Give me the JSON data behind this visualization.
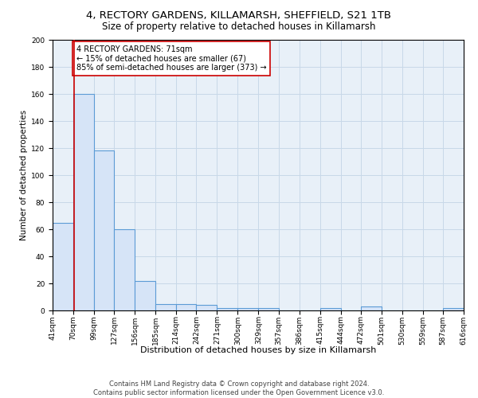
{
  "title1": "4, RECTORY GARDENS, KILLAMARSH, SHEFFIELD, S21 1TB",
  "title2": "Size of property relative to detached houses in Killamarsh",
  "xlabel": "Distribution of detached houses by size in Killamarsh",
  "ylabel": "Number of detached properties",
  "bin_edges": [
    41,
    70,
    99,
    127,
    156,
    185,
    214,
    242,
    271,
    300,
    329,
    357,
    386,
    415,
    444,
    472,
    501,
    530,
    559,
    587,
    616
  ],
  "bar_heights": [
    65,
    160,
    118,
    60,
    22,
    5,
    5,
    4,
    2,
    2,
    2,
    0,
    0,
    2,
    0,
    3,
    0,
    0,
    0,
    2
  ],
  "bar_facecolor": "#d6e4f7",
  "bar_edgecolor": "#5b9bd5",
  "property_size": 71,
  "property_line_color": "#cc0000",
  "annotation_line1": "4 RECTORY GARDENS: 71sqm",
  "annotation_line2": "← 15% of detached houses are smaller (67)",
  "annotation_line3": "85% of semi-detached houses are larger (373) →",
  "annotation_box_color": "white",
  "annotation_box_edgecolor": "#cc0000",
  "ylim": [
    0,
    200
  ],
  "yticks": [
    0,
    20,
    40,
    60,
    80,
    100,
    120,
    140,
    160,
    180,
    200
  ],
  "grid_color": "#c8d8e8",
  "bg_color": "#e8f0f8",
  "footer_line1": "Contains HM Land Registry data © Crown copyright and database right 2024.",
  "footer_line2": "Contains public sector information licensed under the Open Government Licence v3.0.",
  "title1_fontsize": 9.5,
  "title2_fontsize": 8.5,
  "xlabel_fontsize": 8,
  "ylabel_fontsize": 7.5,
  "tick_fontsize": 6.5,
  "annotation_fontsize": 7,
  "footer_fontsize": 6
}
